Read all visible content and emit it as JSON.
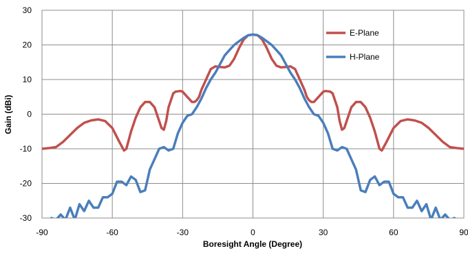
{
  "chart_data": {
    "type": "line",
    "title": "",
    "xlabel": "Boresight Angle (Degree)",
    "ylabel": "Gain (dBi)",
    "xlim": [
      -90,
      90
    ],
    "ylim": [
      -30,
      30
    ],
    "xticks": [
      -90,
      -60,
      -30,
      0,
      30,
      60,
      90
    ],
    "yticks": [
      30,
      20,
      10,
      0,
      -10,
      -20,
      -30
    ],
    "grid": true,
    "legend_position": "top-right",
    "series": [
      {
        "name": "E-Plane",
        "color": "#c0504d",
        "x": [
          -90,
          -87,
          -84,
          -81,
          -78,
          -75,
          -72,
          -69,
          -66,
          -63,
          -60,
          -57,
          -55,
          -54,
          -52,
          -50,
          -48,
          -46,
          -44,
          -42,
          -40,
          -39,
          -38,
          -37,
          -36,
          -34,
          -33,
          -31,
          -30,
          -28,
          -26,
          -25,
          -24,
          -23,
          -22,
          -20,
          -18,
          -16,
          -14,
          -12,
          -10,
          -9,
          -8,
          -6,
          -4,
          -2,
          0,
          2,
          4,
          6,
          8,
          9,
          10,
          12,
          14,
          16,
          18,
          20,
          22,
          23,
          24,
          25,
          26,
          28,
          30,
          31,
          33,
          34,
          36,
          37,
          38,
          39,
          40,
          42,
          44,
          46,
          48,
          50,
          52,
          54,
          55,
          57,
          60,
          63,
          66,
          69,
          72,
          75,
          78,
          81,
          84,
          87,
          90
        ],
        "y": [
          -10,
          -9.8,
          -9.5,
          -8,
          -6,
          -4,
          -2.5,
          -1.8,
          -1.5,
          -2,
          -4,
          -8,
          -10.5,
          -10,
          -5,
          -1,
          2,
          3.5,
          3.5,
          2,
          -2,
          -4,
          -4.5,
          -2,
          2,
          6,
          6.5,
          6.7,
          6.5,
          5,
          3.5,
          3.5,
          4,
          5,
          7,
          10,
          13,
          13.8,
          13.6,
          13.5,
          14,
          15,
          16,
          19,
          21.5,
          22.8,
          23,
          22.8,
          21.5,
          19,
          16,
          15,
          14,
          13.5,
          13.6,
          13.8,
          13,
          10,
          7,
          5,
          4,
          3.5,
          3.5,
          5,
          6.5,
          6.7,
          6.5,
          6,
          2,
          -2,
          -4.5,
          -4,
          -2,
          2,
          3.5,
          3.5,
          2,
          -1,
          -5,
          -10,
          -10.5,
          -8,
          -4,
          -2,
          -1.5,
          -1.8,
          -2.5,
          -4,
          -6,
          -8,
          -9.5,
          -9.8,
          -10
        ]
      },
      {
        "name": "H-Plane",
        "color": "#4a7ebb",
        "x": [
          -86,
          -84,
          -82,
          -80,
          -78,
          -76,
          -74,
          -72,
          -70,
          -68,
          -66,
          -64,
          -62,
          -60,
          -58,
          -56,
          -54,
          -52,
          -50,
          -48,
          -46,
          -44,
          -42,
          -40,
          -38,
          -36,
          -34,
          -32,
          -30,
          -28,
          -26,
          -24,
          -22,
          -20,
          -18,
          -16,
          -14,
          -12,
          -10,
          -8,
          -6,
          -4,
          -2,
          0,
          2,
          4,
          6,
          8,
          10,
          12,
          14,
          16,
          18,
          20,
          22,
          24,
          26,
          28,
          30,
          32,
          34,
          36,
          38,
          40,
          42,
          44,
          46,
          48,
          50,
          52,
          54,
          56,
          58,
          60,
          62,
          64,
          66,
          68,
          70,
          72,
          74,
          76,
          78,
          80,
          82,
          84,
          86
        ],
        "y": [
          -30,
          -30.5,
          -29,
          -30.5,
          -27,
          -30.5,
          -26,
          -28,
          -25,
          -27,
          -27,
          -24,
          -24,
          -23,
          -19.5,
          -19.5,
          -20.5,
          -18,
          -19,
          -22.5,
          -22,
          -16,
          -13,
          -10,
          -9.5,
          -10.5,
          -10,
          -5.5,
          -2.5,
          -0.5,
          0,
          2,
          4.5,
          7.5,
          10,
          12,
          14.5,
          17,
          18.5,
          20,
          21,
          22,
          22.8,
          23,
          22.8,
          22,
          21,
          20,
          18.5,
          17,
          14.5,
          12,
          10,
          7.5,
          4.5,
          2,
          0,
          -0.5,
          -2.5,
          -5.5,
          -10,
          -10.5,
          -9.5,
          -10,
          -13,
          -16,
          -22,
          -22.5,
          -19,
          -18,
          -20.5,
          -19.5,
          -19.5,
          -23,
          -24,
          -24,
          -27,
          -27,
          -25,
          -28,
          -26,
          -30.5,
          -27,
          -30.5,
          -29,
          -30.5,
          -30
        ]
      }
    ]
  }
}
